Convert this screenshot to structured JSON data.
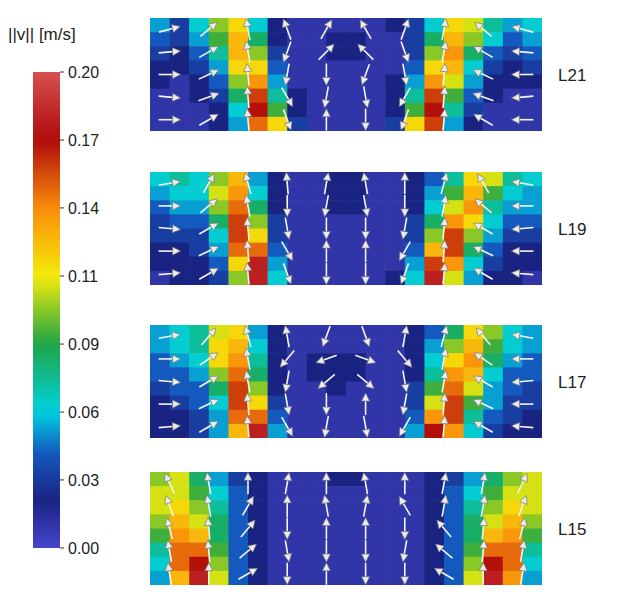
{
  "chart_data": {
    "type": "vector_field",
    "tick_labels": false,
    "colorbar": {
      "label": "||v|| [m/s]",
      "range": [
        0,
        0.2
      ],
      "ticks": [
        {
          "value": 0,
          "label": "0.00"
        },
        {
          "value": 0.0286,
          "label": "0.03"
        },
        {
          "value": 0.0571,
          "label": "0.06"
        },
        {
          "value": 0.0857,
          "label": "0.09"
        },
        {
          "value": 0.1143,
          "label": "0.11"
        },
        {
          "value": 0.1429,
          "label": "0.14"
        },
        {
          "value": 0.1714,
          "label": "0.17"
        },
        {
          "value": 0.2,
          "label": "0.20"
        }
      ]
    },
    "panels": [
      {
        "title": "L21",
        "speed": [
          [
            0.05,
            0.03,
            0.06,
            0.1,
            0.12,
            0.06,
            0.02,
            0.01,
            0.01,
            0.01,
            0.01,
            0.01,
            0.02,
            0.03,
            0.06,
            0.12,
            0.11,
            0.07,
            0.05,
            0.06
          ],
          [
            0.04,
            0.03,
            0.05,
            0.09,
            0.13,
            0.08,
            0.02,
            0.01,
            0.01,
            0.02,
            0.02,
            0.01,
            0.01,
            0.03,
            0.08,
            0.13,
            0.1,
            0.06,
            0.04,
            0.05
          ],
          [
            0.03,
            0.02,
            0.04,
            0.07,
            0.13,
            0.1,
            0.03,
            0.01,
            0.01,
            0.02,
            0.02,
            0.01,
            0.01,
            0.03,
            0.1,
            0.14,
            0.08,
            0.04,
            0.03,
            0.04
          ],
          [
            0.02,
            0.02,
            0.03,
            0.05,
            0.12,
            0.12,
            0.04,
            0.01,
            0.01,
            0.01,
            0.01,
            0.01,
            0.01,
            0.04,
            0.12,
            0.13,
            0.06,
            0.03,
            0.02,
            0.03
          ],
          [
            0.02,
            0.01,
            0.02,
            0.04,
            0.1,
            0.14,
            0.05,
            0.01,
            0.01,
            0.01,
            0.01,
            0.01,
            0.02,
            0.05,
            0.14,
            0.11,
            0.05,
            0.02,
            0.02,
            0.02
          ],
          [
            0.01,
            0.01,
            0.02,
            0.03,
            0.08,
            0.16,
            0.07,
            0.02,
            0.01,
            0.01,
            0.01,
            0.01,
            0.02,
            0.07,
            0.16,
            0.09,
            0.04,
            0.02,
            0.01,
            0.01
          ],
          [
            0.01,
            0.01,
            0.01,
            0.02,
            0.06,
            0.17,
            0.09,
            0.02,
            0.01,
            0.01,
            0.01,
            0.01,
            0.02,
            0.09,
            0.17,
            0.07,
            0.03,
            0.01,
            0.01,
            0.01
          ],
          [
            0.01,
            0.01,
            0.01,
            0.02,
            0.05,
            0.15,
            0.12,
            0.03,
            0.01,
            0.01,
            0.01,
            0.01,
            0.03,
            0.12,
            0.16,
            0.05,
            0.02,
            0.01,
            0.01,
            0.01
          ]
        ],
        "direction": [
          [
            15,
            40,
            100,
            110,
            60,
            120,
            70,
            80,
            140,
            165
          ],
          [
            5,
            30,
            100,
            250,
            45,
            135,
            290,
            80,
            150,
            175
          ],
          [
            0,
            25,
            95,
            260,
            270,
            250,
            280,
            85,
            155,
            180
          ],
          [
            355,
            20,
            95,
            300,
            260,
            280,
            240,
            85,
            160,
            185
          ],
          [
            0,
            30,
            95,
            290,
            90,
            270,
            250,
            85,
            150,
            180
          ]
        ]
      },
      {
        "title": "L19",
        "speed": [
          [
            0.06,
            0.07,
            0.06,
            0.1,
            0.13,
            0.05,
            0.02,
            0.01,
            0.01,
            0.02,
            0.02,
            0.01,
            0.01,
            0.02,
            0.04,
            0.07,
            0.12,
            0.11,
            0.07,
            0.06
          ],
          [
            0.05,
            0.06,
            0.06,
            0.11,
            0.14,
            0.06,
            0.02,
            0.01,
            0.01,
            0.02,
            0.02,
            0.01,
            0.01,
            0.02,
            0.05,
            0.09,
            0.13,
            0.09,
            0.06,
            0.05
          ],
          [
            0.04,
            0.05,
            0.05,
            0.1,
            0.15,
            0.08,
            0.02,
            0.01,
            0.01,
            0.02,
            0.02,
            0.01,
            0.01,
            0.02,
            0.06,
            0.11,
            0.14,
            0.07,
            0.05,
            0.05
          ],
          [
            0.03,
            0.04,
            0.04,
            0.08,
            0.16,
            0.1,
            0.03,
            0.01,
            0.01,
            0.01,
            0.01,
            0.01,
            0.01,
            0.03,
            0.08,
            0.14,
            0.12,
            0.06,
            0.04,
            0.04
          ],
          [
            0.03,
            0.03,
            0.03,
            0.06,
            0.16,
            0.12,
            0.03,
            0.01,
            0.01,
            0.01,
            0.01,
            0.01,
            0.01,
            0.03,
            0.1,
            0.16,
            0.1,
            0.05,
            0.03,
            0.03
          ],
          [
            0.02,
            0.02,
            0.03,
            0.05,
            0.15,
            0.15,
            0.04,
            0.01,
            0.01,
            0.01,
            0.01,
            0.01,
            0.01,
            0.04,
            0.13,
            0.16,
            0.08,
            0.04,
            0.02,
            0.02
          ],
          [
            0.02,
            0.02,
            0.02,
            0.04,
            0.12,
            0.18,
            0.05,
            0.01,
            0.01,
            0.01,
            0.01,
            0.01,
            0.01,
            0.05,
            0.16,
            0.14,
            0.06,
            0.03,
            0.02,
            0.02
          ],
          [
            0.01,
            0.02,
            0.02,
            0.03,
            0.1,
            0.18,
            0.06,
            0.01,
            0.01,
            0.01,
            0.01,
            0.01,
            0.02,
            0.06,
            0.18,
            0.11,
            0.05,
            0.02,
            0.02,
            0.01
          ]
        ],
        "direction": [
          [
            10,
            60,
            105,
            95,
            80,
            100,
            90,
            75,
            120,
            170
          ],
          [
            0,
            40,
            100,
            270,
            260,
            280,
            270,
            80,
            140,
            180
          ],
          [
            355,
            30,
            95,
            280,
            270,
            270,
            260,
            85,
            150,
            185
          ],
          [
            0,
            25,
            95,
            300,
            90,
            90,
            240,
            85,
            155,
            180
          ],
          [
            5,
            30,
            95,
            290,
            270,
            270,
            250,
            85,
            150,
            175
          ]
        ]
      },
      {
        "title": "L17",
        "speed": [
          [
            0.05,
            0.06,
            0.07,
            0.11,
            0.12,
            0.05,
            0.02,
            0.01,
            0.01,
            0.01,
            0.01,
            0.01,
            0.01,
            0.02,
            0.04,
            0.08,
            0.12,
            0.1,
            0.06,
            0.05
          ],
          [
            0.05,
            0.06,
            0.07,
            0.12,
            0.13,
            0.06,
            0.02,
            0.01,
            0.01,
            0.01,
            0.01,
            0.01,
            0.01,
            0.02,
            0.05,
            0.1,
            0.13,
            0.09,
            0.06,
            0.05
          ],
          [
            0.04,
            0.05,
            0.06,
            0.12,
            0.14,
            0.07,
            0.02,
            0.01,
            0.02,
            0.02,
            0.02,
            0.01,
            0.01,
            0.02,
            0.06,
            0.12,
            0.14,
            0.08,
            0.05,
            0.04
          ],
          [
            0.04,
            0.04,
            0.05,
            0.1,
            0.15,
            0.08,
            0.02,
            0.01,
            0.02,
            0.02,
            0.02,
            0.01,
            0.01,
            0.02,
            0.07,
            0.14,
            0.13,
            0.06,
            0.04,
            0.04
          ],
          [
            0.03,
            0.04,
            0.04,
            0.08,
            0.16,
            0.1,
            0.02,
            0.01,
            0.01,
            0.02,
            0.01,
            0.01,
            0.01,
            0.03,
            0.09,
            0.15,
            0.11,
            0.05,
            0.04,
            0.03
          ],
          [
            0.02,
            0.03,
            0.04,
            0.06,
            0.16,
            0.12,
            0.03,
            0.01,
            0.01,
            0.01,
            0.01,
            0.01,
            0.01,
            0.03,
            0.11,
            0.16,
            0.09,
            0.05,
            0.03,
            0.03
          ],
          [
            0.02,
            0.02,
            0.03,
            0.05,
            0.15,
            0.15,
            0.04,
            0.01,
            0.01,
            0.01,
            0.01,
            0.01,
            0.01,
            0.04,
            0.14,
            0.16,
            0.07,
            0.04,
            0.03,
            0.02
          ],
          [
            0.02,
            0.02,
            0.03,
            0.05,
            0.13,
            0.18,
            0.05,
            0.01,
            0.01,
            0.01,
            0.01,
            0.01,
            0.01,
            0.05,
            0.17,
            0.14,
            0.06,
            0.03,
            0.02,
            0.02
          ]
        ],
        "direction": [
          [
            10,
            50,
            105,
            100,
            250,
            290,
            80,
            75,
            130,
            170
          ],
          [
            0,
            35,
            100,
            230,
            200,
            340,
            310,
            80,
            145,
            180
          ],
          [
            355,
            30,
            100,
            260,
            220,
            320,
            280,
            80,
            150,
            185
          ],
          [
            0,
            25,
            95,
            280,
            270,
            90,
            260,
            85,
            155,
            180
          ],
          [
            5,
            30,
            95,
            300,
            260,
            280,
            240,
            85,
            150,
            175
          ]
        ]
      },
      {
        "title": "L15",
        "speed": [
          [
            0.1,
            0.11,
            0.08,
            0.05,
            0.03,
            0.02,
            0.01,
            0.01,
            0.01,
            0.02,
            0.02,
            0.01,
            0.01,
            0.01,
            0.02,
            0.03,
            0.05,
            0.08,
            0.1,
            0.11
          ],
          [
            0.11,
            0.11,
            0.09,
            0.06,
            0.04,
            0.02,
            0.01,
            0.01,
            0.01,
            0.01,
            0.01,
            0.01,
            0.01,
            0.01,
            0.02,
            0.04,
            0.06,
            0.09,
            0.11,
            0.11
          ],
          [
            0.11,
            0.12,
            0.1,
            0.07,
            0.04,
            0.02,
            0.01,
            0.01,
            0.01,
            0.01,
            0.01,
            0.01,
            0.01,
            0.01,
            0.02,
            0.04,
            0.07,
            0.1,
            0.12,
            0.11
          ],
          [
            0.1,
            0.13,
            0.11,
            0.08,
            0.04,
            0.02,
            0.01,
            0.01,
            0.01,
            0.01,
            0.01,
            0.01,
            0.01,
            0.01,
            0.02,
            0.04,
            0.08,
            0.11,
            0.13,
            0.1
          ],
          [
            0.09,
            0.14,
            0.13,
            0.08,
            0.04,
            0.02,
            0.01,
            0.01,
            0.01,
            0.01,
            0.01,
            0.01,
            0.01,
            0.01,
            0.02,
            0.04,
            0.08,
            0.13,
            0.14,
            0.09
          ],
          [
            0.07,
            0.15,
            0.15,
            0.09,
            0.04,
            0.02,
            0.01,
            0.01,
            0.01,
            0.01,
            0.01,
            0.01,
            0.01,
            0.01,
            0.02,
            0.04,
            0.09,
            0.15,
            0.15,
            0.07
          ],
          [
            0.06,
            0.15,
            0.17,
            0.1,
            0.04,
            0.02,
            0.01,
            0.01,
            0.01,
            0.01,
            0.01,
            0.01,
            0.01,
            0.01,
            0.02,
            0.04,
            0.1,
            0.17,
            0.15,
            0.06
          ],
          [
            0.05,
            0.13,
            0.18,
            0.11,
            0.04,
            0.02,
            0.01,
            0.01,
            0.01,
            0.01,
            0.01,
            0.01,
            0.01,
            0.01,
            0.02,
            0.04,
            0.11,
            0.18,
            0.14,
            0.05
          ]
        ],
        "direction": [
          [
            115,
            100,
            90,
            80,
            90,
            100,
            90,
            80,
            80,
            65
          ],
          [
            110,
            100,
            60,
            90,
            100,
            80,
            120,
            80,
            80,
            70
          ],
          [
            105,
            95,
            50,
            270,
            90,
            90,
            270,
            130,
            85,
            75
          ],
          [
            100,
            95,
            40,
            280,
            270,
            270,
            260,
            140,
            85,
            80
          ],
          [
            100,
            90,
            30,
            270,
            90,
            270,
            270,
            150,
            90,
            80
          ]
        ]
      }
    ]
  }
}
